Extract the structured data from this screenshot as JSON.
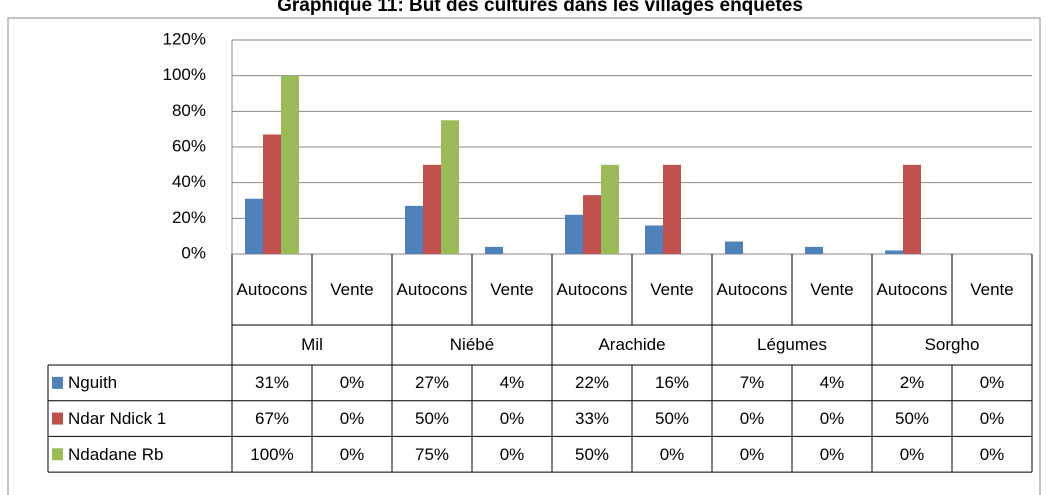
{
  "chart_data": {
    "type": "bar",
    "title": "Graphique 11: But des cultures dans les villages enquêtés",
    "groups": [
      "Mil",
      "Niébé",
      "Arachide",
      "Légumes",
      "Sorgho"
    ],
    "categories": [
      "Autocons",
      "Vente",
      "Autocons",
      "Vente",
      "Autocons",
      "Vente",
      "Autocons",
      "Vente",
      "Autocons",
      "Vente"
    ],
    "series": [
      {
        "name": "Nguith",
        "color": "#4f81bd",
        "values": [
          31,
          0,
          27,
          4,
          22,
          16,
          7,
          4,
          2,
          0
        ],
        "value_labels": [
          "31%",
          "0%",
          "27%",
          "4%",
          "22%",
          "16%",
          "7%",
          "4%",
          "2%",
          "0%"
        ]
      },
      {
        "name": "Ndar Ndick 1",
        "color": "#c0504d",
        "values": [
          67,
          0,
          50,
          0,
          33,
          50,
          0,
          0,
          50,
          0
        ],
        "value_labels": [
          "67%",
          "0%",
          "50%",
          "0%",
          "33%",
          "50%",
          "0%",
          "0%",
          "50%",
          "0%"
        ]
      },
      {
        "name": "Ndadane Rb",
        "color": "#9bbb59",
        "values": [
          100,
          0,
          75,
          0,
          50,
          0,
          0,
          0,
          0,
          0
        ],
        "value_labels": [
          "100%",
          "0%",
          "75%",
          "0%",
          "50%",
          "0%",
          "0%",
          "0%",
          "0%",
          "0%"
        ]
      }
    ],
    "ylim": [
      0,
      120
    ],
    "yticks": [
      {
        "value": 0,
        "label": "0%"
      },
      {
        "value": 20,
        "label": "20%"
      },
      {
        "value": 40,
        "label": "40%"
      },
      {
        "value": 60,
        "label": "60%"
      },
      {
        "value": 80,
        "label": "80%"
      },
      {
        "value": 100,
        "label": "100%"
      },
      {
        "value": 120,
        "label": "120%"
      }
    ],
    "grid": true
  }
}
